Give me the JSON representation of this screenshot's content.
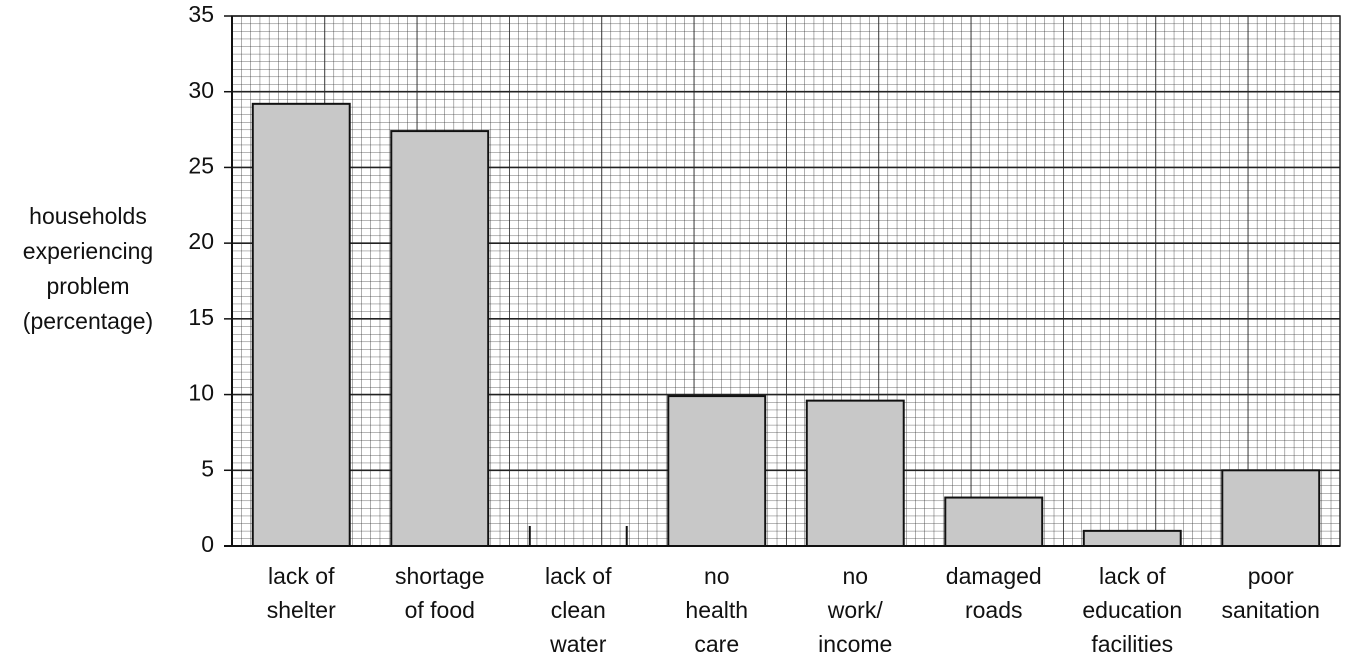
{
  "chart_data": {
    "type": "bar",
    "y_label": [
      "households",
      "experiencing",
      "problem",
      "(percentage)"
    ],
    "categories": [
      [
        "lack of",
        "shelter"
      ],
      [
        "shortage",
        "of food"
      ],
      [
        "lack of",
        "clean",
        "water"
      ],
      [
        "no",
        "health",
        "care"
      ],
      [
        "no",
        "work/",
        "income"
      ],
      [
        "damaged",
        "roads"
      ],
      [
        "lack of",
        "education",
        "facilities"
      ],
      [
        "poor",
        "sanitation"
      ]
    ],
    "values": [
      29.2,
      27.4,
      null,
      9.9,
      9.6,
      3.2,
      1.0,
      5.0
    ],
    "color": "#c8c8c8",
    "ylim": [
      0,
      35
    ],
    "yticks": [
      0,
      5,
      10,
      15,
      20,
      25,
      30,
      35
    ],
    "grid": true
  }
}
